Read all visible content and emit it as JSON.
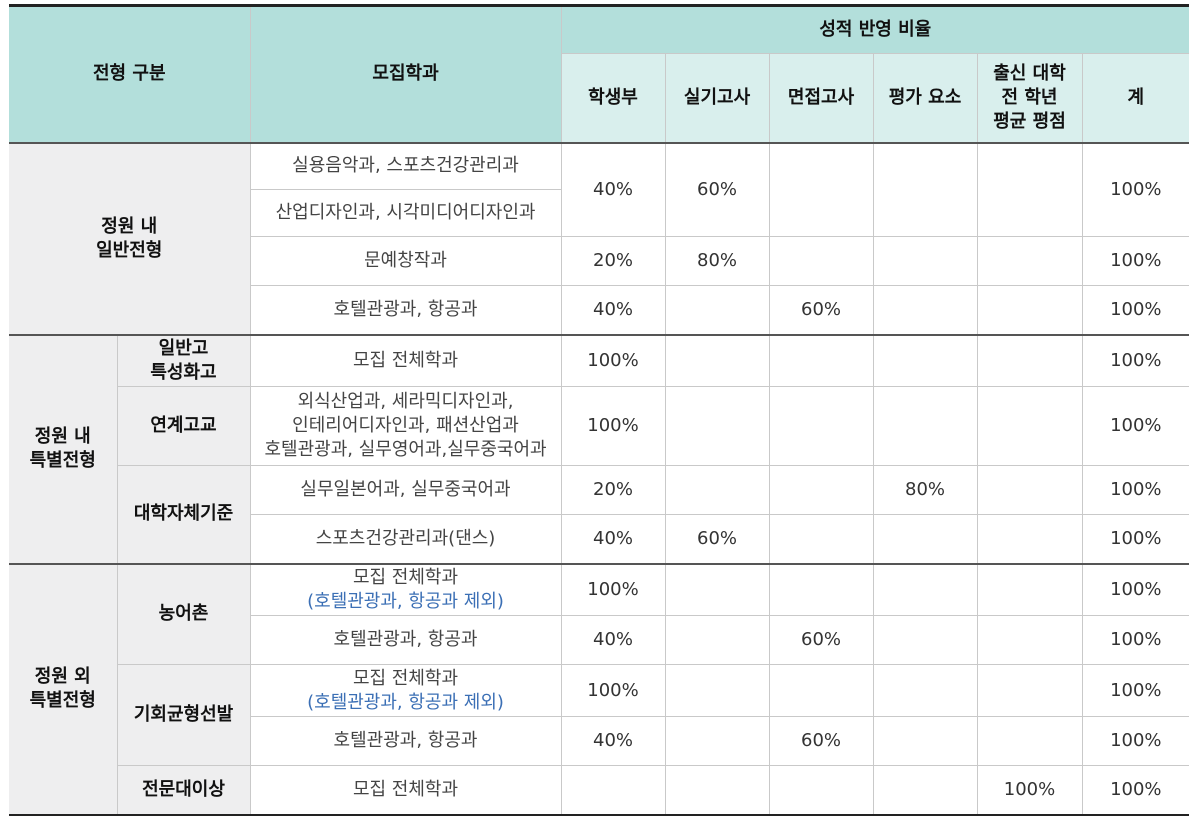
{
  "header": {
    "col_type": "전형 구분",
    "col_dept": "모집학과",
    "col_ratio": "성적 반영 비율",
    "sub": {
      "s1": "학생부",
      "s2": "실기고사",
      "s3": "면접고사",
      "s4": "평가 요소",
      "s5_l1": "출신 대학",
      "s5_l2": "전 학년",
      "s5_l3": "평균 평점",
      "s6": "계"
    }
  },
  "groups": {
    "g1": {
      "l1": "정원 내",
      "l2": "일반전형"
    },
    "g2": {
      "l1": "정원 내",
      "l2": "특별전형"
    },
    "g3": {
      "l1": "정원 외",
      "l2": "특별전형"
    }
  },
  "subtypes": {
    "t1_l1": "일반고",
    "t1_l2": "특성화고",
    "t2": "연계고교",
    "t3": "대학자체기준",
    "t4": "농어촌",
    "t5": "기회균형선발",
    "t6": "전문대이상"
  },
  "rows": {
    "r1": {
      "dept": "실용음악과, 스포츠건강관리과",
      "s1": "40%",
      "s2": "60%",
      "total": "100%"
    },
    "r2": {
      "dept": "산업디자인과, 시각미디어디자인과"
    },
    "r3": {
      "dept": "문예창작과",
      "s1": "20%",
      "s2": "80%",
      "total": "100%"
    },
    "r4": {
      "dept": "호텔관광과, 항공과",
      "s1": "40%",
      "s3": "60%",
      "total": "100%"
    },
    "r5": {
      "dept": "모집 전체학과",
      "s1": "100%",
      "total": "100%"
    },
    "r6": {
      "dept_l1": "외식산업과, 세라믹디자인과,",
      "dept_l2": "인테리어디자인과, 패션산업과",
      "dept_l3": "호텔관광과, 실무영어과,실무중국어과",
      "s1": "100%",
      "total": "100%"
    },
    "r7": {
      "dept": "실무일본어과, 실무중국어과",
      "s1": "20%",
      "s4": "80%",
      "total": "100%"
    },
    "r8": {
      "dept": "스포츠건강관리과(댄스)",
      "s1": "40%",
      "s2": "60%",
      "total": "100%"
    },
    "r9": {
      "dept": "모집 전체학과",
      "note": "(호텔관광과, 항공과 제외)",
      "s1": "100%",
      "total": "100%"
    },
    "r10": {
      "dept": "호텔관광과, 항공과",
      "s1": "40%",
      "s3": "60%",
      "total": "100%"
    },
    "r11": {
      "dept": "모집 전체학과",
      "note": "(호텔관광과, 항공과 제외)",
      "s1": "100%",
      "total": "100%"
    },
    "r12": {
      "dept": "호텔관광과, 항공과",
      "s1": "40%",
      "s3": "60%",
      "total": "100%"
    },
    "r13": {
      "dept": "모집 전체학과",
      "s5": "100%",
      "total": "100%"
    }
  }
}
